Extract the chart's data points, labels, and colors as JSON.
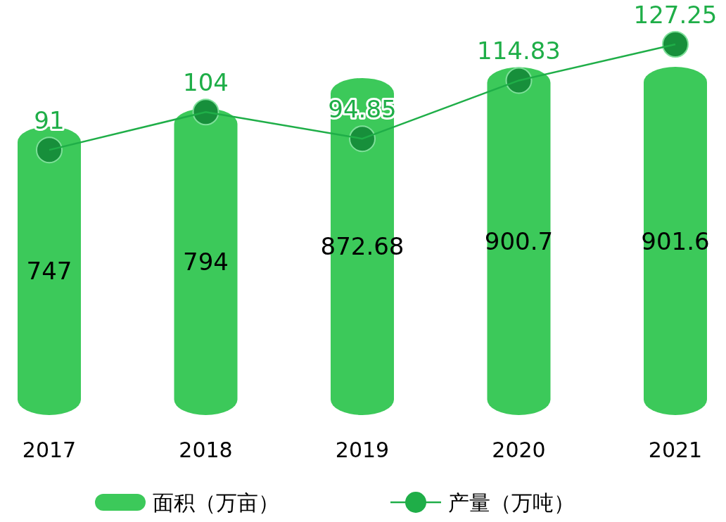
{
  "chart_data": {
    "type": "bar",
    "categories": [
      "2017",
      "2018",
      "2019",
      "2020",
      "2021"
    ],
    "series": [
      {
        "name": "面积（万亩）",
        "color": "#3cc95a",
        "values": [
          747,
          794,
          872.68,
          900.7,
          901.6
        ]
      },
      {
        "name": "产量（万吨）",
        "type": "line",
        "axis": "y2",
        "color": "#1fae48",
        "values": [
          91,
          104,
          94.85,
          114.83,
          127.25
        ]
      }
    ],
    "tick_labels": "x",
    "data_labels": true,
    "legend": "bottom",
    "marker": "circle"
  }
}
